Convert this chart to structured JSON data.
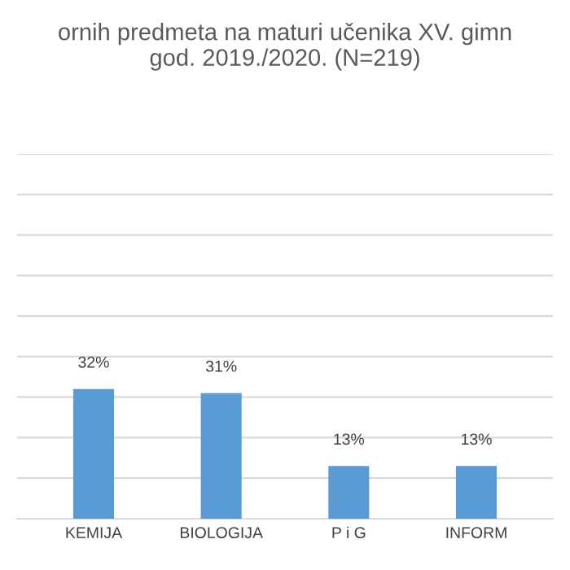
{
  "chart_data": {
    "type": "bar",
    "title": "ornih predmeta na maturi učenika XV. gimn\ngod. 2019./2020. (N=219)",
    "categories": [
      "KEMIJA",
      "BIOLOGIJA",
      "P i G",
      "INFORM"
    ],
    "values": [
      32,
      31,
      13,
      13
    ],
    "value_labels": [
      "32%",
      "31%",
      "13%",
      "13%"
    ],
    "color": "#5b9bd5",
    "ylim": [
      0,
      90
    ],
    "yticks": [
      {
        "value": 0,
        "label": null
      },
      {
        "value": 10,
        "label": null
      },
      {
        "value": 20,
        "label": null
      },
      {
        "value": 30,
        "label": null
      },
      {
        "value": 40,
        "label": null
      },
      {
        "value": 50,
        "label": null
      },
      {
        "value": 60,
        "label": null
      },
      {
        "value": 70,
        "label": null
      },
      {
        "value": 80,
        "label": null
      },
      {
        "value": 90,
        "label": null
      }
    ],
    "grid": "y",
    "tick_labels": "x",
    "legend": false
  }
}
